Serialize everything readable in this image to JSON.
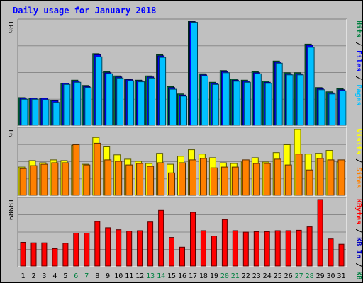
{
  "chart_data": {
    "type": "bar",
    "title": "Daily usage for January 2018",
    "colors": {
      "background": "#c0c0c0",
      "title": "#0000ff",
      "gridline": "#8a8a8a",
      "hits": "#008040",
      "files": "#0000ff",
      "pages": "#00c0ff",
      "visits": "#ffff00",
      "sites": "#ff8000",
      "kbin": "#0000c0",
      "kbout": "#008040",
      "kbf": "#ff0000",
      "weekend_label": "#008040",
      "weekday_label": "#000000",
      "separator": "#000000"
    },
    "categories": [
      "1",
      "2",
      "3",
      "4",
      "5",
      "6",
      "7",
      "8",
      "9",
      "10",
      "11",
      "12",
      "13",
      "14",
      "15",
      "16",
      "17",
      "18",
      "19",
      "20",
      "21",
      "22",
      "23",
      "24",
      "25",
      "26",
      "27",
      "28",
      "29",
      "30",
      "31"
    ],
    "weekend_days": [
      "6",
      "7",
      "13",
      "14",
      "20",
      "21",
      "27",
      "28"
    ],
    "panels": [
      {
        "id": "hits_panel",
        "max_label": "981",
        "ymax": 981,
        "legend": [
          {
            "text": "Hits",
            "color": "#008040"
          },
          {
            "text": " / ",
            "color": "#000000"
          },
          {
            "text": "Files",
            "color": "#0000ff"
          },
          {
            "text": " / ",
            "color": "#000000"
          },
          {
            "text": "Pages",
            "color": "#00c0ff"
          }
        ],
        "series": [
          {
            "name": "Hits",
            "color": "#008040",
            "values": [
              260,
              255,
              255,
              235,
              395,
              425,
              375,
              675,
              505,
              465,
              435,
              425,
              465,
              665,
              365,
              295,
              981,
              485,
              405,
              515,
              435,
              425,
              505,
              415,
              605,
              495,
              495,
              765,
              355,
              315,
              345
            ]
          },
          {
            "name": "Files",
            "color": "#0000ff",
            "values": [
              255,
              255,
              255,
              230,
              395,
              415,
              365,
              665,
              495,
              455,
              430,
              420,
              455,
              655,
              355,
              285,
              975,
              475,
              395,
              505,
              425,
              415,
              495,
              405,
              595,
              485,
              485,
              755,
              345,
              305,
              335
            ]
          },
          {
            "name": "Pages",
            "color": "#00c0ff",
            "values": [
              245,
              245,
              240,
              215,
              385,
              405,
              355,
              645,
              485,
              445,
              420,
              410,
              445,
              640,
              340,
              275,
              970,
              465,
              385,
              495,
              415,
              405,
              485,
              395,
              585,
              475,
              475,
              735,
              335,
              295,
              325
            ]
          }
        ]
      },
      {
        "id": "visits_panel",
        "max_label": "91",
        "ymax": 91,
        "legend": [
          {
            "text": "Visits",
            "color": "#ffff00"
          },
          {
            "text": " / ",
            "color": "#000000"
          },
          {
            "text": "Sites",
            "color": "#ff8000"
          }
        ],
        "series": [
          {
            "name": "Visits",
            "color": "#ffff00",
            "values": [
              39,
              48,
              45,
              49,
              48,
              69,
              43,
              80,
              67,
              56,
              50,
              47,
              44,
              58,
              43,
              54,
              63,
              57,
              52,
              45,
              44,
              46,
              52,
              46,
              59,
              70,
              91,
              57,
              58,
              62,
              46
            ]
          },
          {
            "name": "Sites",
            "color": "#ff8000",
            "values": [
              37,
              41,
              43,
              45,
              45,
              70,
              42,
              72,
              49,
              47,
              42,
              44,
              40,
              45,
              31,
              45,
              49,
              51,
              38,
              39,
              39,
              49,
              44,
              44,
              50,
              42,
              57,
              35,
              51,
              49,
              49
            ]
          }
        ]
      },
      {
        "id": "kbytes_panel",
        "max_label": "68681",
        "ymax": 68681,
        "legend": [
          {
            "text": "KBytes",
            "color": "#ff0000"
          },
          {
            "text": " / ",
            "color": "#000000"
          },
          {
            "text": "KB In",
            "color": "#0000c0"
          },
          {
            "text": " / ",
            "color": "#000000"
          },
          {
            "text": "KB Out",
            "color": "#008040"
          }
        ],
        "series": [
          {
            "name": "KBytes",
            "color": "#ff0000",
            "values": [
              24500,
              24000,
              24000,
              18000,
              23500,
              34000,
              34000,
              46000,
              39500,
              37500,
              36000,
              36500,
              45500,
              57500,
              29500,
              19500,
              55500,
              36500,
              31000,
              48000,
              36500,
              35000,
              35500,
              35500,
              36500,
              36500,
              37000,
              40500,
              68681,
              28000,
              22500
            ]
          }
        ]
      }
    ]
  }
}
